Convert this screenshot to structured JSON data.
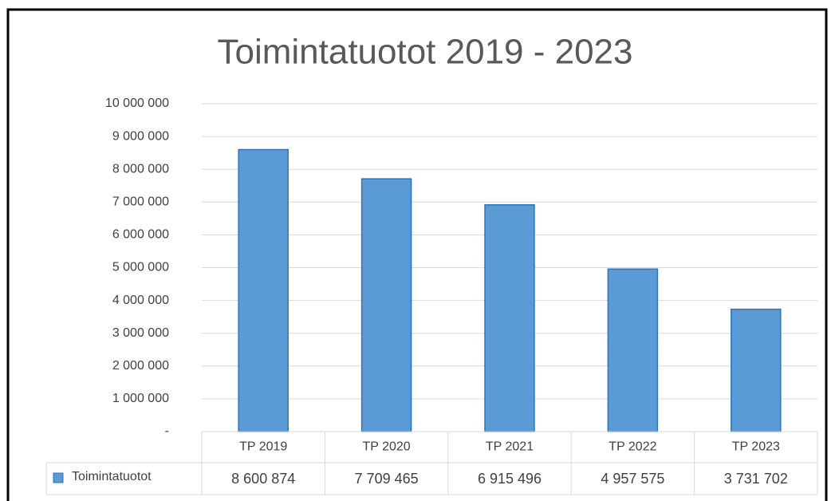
{
  "chart_data": {
    "type": "bar",
    "title": "Toimintatuotot 2019 - 2023",
    "categories": [
      "TP 2019",
      "TP 2020",
      "TP 2021",
      "TP 2022",
      "TP 2023"
    ],
    "series": [
      {
        "name": "Toimintatuotot",
        "color": "#5b9bd5",
        "values": [
          8600874,
          7709465,
          6915496,
          4957575,
          3731702
        ],
        "value_labels": [
          "8 600 874",
          "7 709 465",
          "6 915 496",
          "4 957 575",
          "3 731 702"
        ]
      }
    ],
    "ylim": [
      0,
      10000000
    ],
    "yticks": [
      {
        "value": 0,
        "label": "-"
      },
      {
        "value": 1000000,
        "label": "1 000 000"
      },
      {
        "value": 2000000,
        "label": "2 000 000"
      },
      {
        "value": 3000000,
        "label": "3 000 000"
      },
      {
        "value": 4000000,
        "label": "4 000 000"
      },
      {
        "value": 5000000,
        "label": "5 000 000"
      },
      {
        "value": 6000000,
        "label": "6 000 000"
      },
      {
        "value": 7000000,
        "label": "7 000 000"
      },
      {
        "value": 8000000,
        "label": "8 000 000"
      },
      {
        "value": 9000000,
        "label": "9 000 000"
      },
      {
        "value": 10000000,
        "label": "10 000 000"
      }
    ],
    "grid": true
  }
}
